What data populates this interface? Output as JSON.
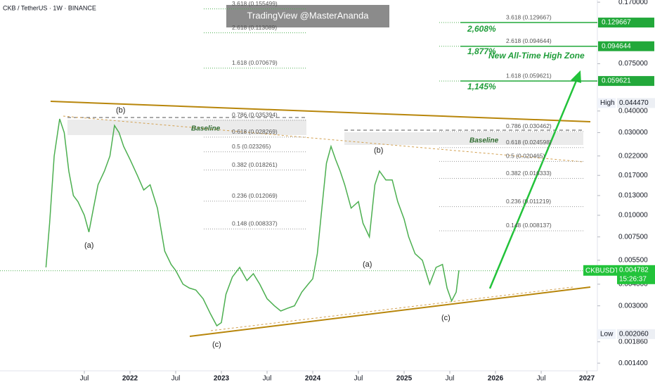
{
  "chart_data": {
    "type": "line",
    "title": "CKB / TetherUS · 1W · BINANCE",
    "watermark": "TradingView @MasterAnanda",
    "log_scale": true,
    "xlim": [
      2020.577,
      2027.115
    ],
    "xticks": [
      {
        "value": 2021.5,
        "label": "Jul"
      },
      2022,
      {
        "value": 2022.5,
        "label": "Jul"
      },
      2023,
      {
        "value": 2023.5,
        "label": "Jul"
      },
      2024,
      {
        "value": 2024.5,
        "label": "Jul"
      },
      2025,
      {
        "value": 2025.5,
        "label": "Jul"
      },
      2026,
      {
        "value": 2026.5,
        "label": "Jul"
      },
      2027
    ],
    "ylim": [
      0.00135,
      0.175
    ],
    "yticks": [
      {
        "value": 0.17,
        "label": "0.170000"
      },
      {
        "value": 0.075,
        "label": "0.075000"
      },
      {
        "value": 0.04,
        "label": "0.040000"
      },
      {
        "value": 0.03,
        "label": "0.030000"
      },
      {
        "value": 0.022,
        "label": "0.022000"
      },
      {
        "value": 0.017,
        "label": "0.017000"
      },
      {
        "value": 0.013,
        "label": "0.013000"
      },
      {
        "value": 0.01,
        "label": "0.010000"
      },
      {
        "value": 0.0075,
        "label": "0.007500"
      },
      {
        "value": 0.0055,
        "label": "0.005500"
      },
      {
        "value": 0.004,
        "label": "0.004000"
      },
      {
        "value": 0.003,
        "label": "0.003000"
      },
      {
        "value": 0.00186,
        "label": "0.001860"
      },
      {
        "value": 0.0014,
        "label": "0.001400"
      }
    ],
    "series": [
      {
        "color": "#4caf50",
        "x": [
          2021.08,
          2021.12,
          2021.17,
          2021.23,
          2021.28,
          2021.33,
          2021.38,
          2021.43,
          2021.5,
          2021.55,
          2021.6,
          2021.65,
          2021.72,
          2021.78,
          2021.83,
          2021.88,
          2021.93,
          2022.0,
          2022.08,
          2022.15,
          2022.22,
          2022.3,
          2022.38,
          2022.45,
          2022.5,
          2022.58,
          2022.65,
          2022.72,
          2022.8,
          2022.88,
          2022.95,
          2023.0,
          2023.05,
          2023.12,
          2023.2,
          2023.28,
          2023.35,
          2023.42,
          2023.5,
          2023.58,
          2023.65,
          2023.72,
          2023.8,
          2023.88,
          2023.95,
          2024.0,
          2024.05,
          2024.1,
          2024.15,
          2024.2,
          2024.25,
          2024.3,
          2024.35,
          2024.42,
          2024.5,
          2024.55,
          2024.62,
          2024.68,
          2024.73,
          2024.8,
          2024.87,
          2024.93,
          2025.0,
          2025.05,
          2025.12,
          2025.2,
          2025.28,
          2025.35,
          2025.42,
          2025.47,
          2025.52,
          2025.57,
          2025.6
        ],
        "values": [
          0.005,
          0.009,
          0.022,
          0.036,
          0.03,
          0.018,
          0.013,
          0.012,
          0.01,
          0.008,
          0.011,
          0.015,
          0.018,
          0.022,
          0.033,
          0.03,
          0.025,
          0.021,
          0.017,
          0.014,
          0.015,
          0.011,
          0.0062,
          0.0052,
          0.0048,
          0.004,
          0.0038,
          0.0037,
          0.0033,
          0.0027,
          0.0023,
          0.0024,
          0.0035,
          0.0044,
          0.005,
          0.0042,
          0.0046,
          0.004,
          0.0033,
          0.003,
          0.0028,
          0.0029,
          0.003,
          0.0036,
          0.004,
          0.0043,
          0.006,
          0.011,
          0.02,
          0.025,
          0.021,
          0.018,
          0.015,
          0.011,
          0.012,
          0.009,
          0.0075,
          0.015,
          0.018,
          0.016,
          0.016,
          0.012,
          0.0095,
          0.0075,
          0.006,
          0.0055,
          0.004,
          0.005,
          0.0052,
          0.0038,
          0.0032,
          0.0036,
          0.0048
        ]
      }
    ],
    "last": {
      "name": "CKBUSDT",
      "value": 0.004782,
      "label": "0.004782",
      "countdown": "15:26:37"
    },
    "markers": [
      {
        "name": "High",
        "value": 0.04447,
        "label": "0.044470"
      },
      {
        "name": "Low",
        "value": 0.00206,
        "label": "0.002060"
      }
    ],
    "target_badges": [
      {
        "value": 0.129667,
        "label": "0.129667"
      },
      {
        "value": 0.094644,
        "label": "0.094644"
      },
      {
        "value": 0.059621,
        "label": "0.059621"
      }
    ],
    "fib_sets": [
      {
        "levels": [
          {
            "value": 0.155499,
            "label": "3.618 (0.155499)"
          },
          {
            "value": 0.113089,
            "label": "2.618 (0.113089)"
          },
          {
            "value": 0.070679,
            "label": "1.618 (0.070679)"
          },
          {
            "value": 0.035394,
            "label": "0.786 (0.035394)"
          },
          {
            "value": 0.028269,
            "label": "0.618 (0.028269)"
          },
          {
            "value": 0.023265,
            "label": "0.5 (0.023265)"
          },
          {
            "value": 0.018261,
            "label": "0.382 (0.018261)"
          },
          {
            "value": 0.012069,
            "label": "0.236 (0.012069)"
          },
          {
            "value": 0.008337,
            "label": "0.148 (0.008337)"
          }
        ]
      },
      {
        "levels": [
          {
            "value": 0.129667,
            "label": "3.618 (0.129667)"
          },
          {
            "value": 0.094644,
            "label": "2.618 (0.094644)"
          },
          {
            "value": 0.059621,
            "label": "1.618 (0.059621)"
          },
          {
            "value": 0.030462,
            "label": "0.786 (0.030462)"
          },
          {
            "value": 0.024598,
            "label": "0.618 (0.024598)"
          },
          {
            "value": 0.020465,
            "label": "0.5 (0.020465)"
          },
          {
            "value": 0.016333,
            "label": "0.382 (0.016333)"
          },
          {
            "value": 0.011219,
            "label": "0.236 (0.011219)"
          },
          {
            "value": 0.008137,
            "label": "0.148 (0.008137)"
          }
        ]
      }
    ],
    "percent_labels": [
      "2,608%",
      "1,877%",
      "1,145%"
    ],
    "zone_label": "New All-Time High Zone",
    "baseline_labels": [
      "Baseline",
      "Baseline"
    ],
    "wave_labels": [
      "(b)",
      "(a)",
      "(c)",
      "(b)",
      "(a)",
      "(c)"
    ]
  }
}
